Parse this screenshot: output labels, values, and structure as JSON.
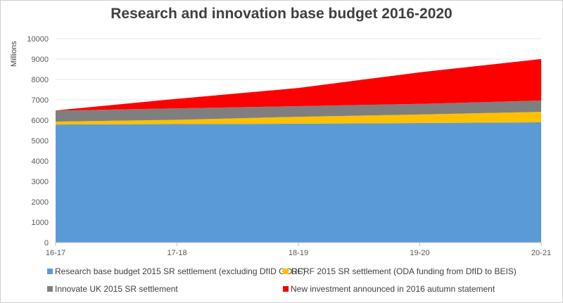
{
  "chart_data": {
    "type": "area",
    "stacked": true,
    "title": "Research and innovation base budget 2016-2020",
    "xlabel": "",
    "ylabel": "Millions",
    "ylim": [
      0,
      10000
    ],
    "yticks": [
      0,
      1000,
      2000,
      3000,
      4000,
      5000,
      6000,
      7000,
      8000,
      9000,
      10000
    ],
    "grid": true,
    "legend_position": "bottom",
    "categories": [
      "16-17",
      "17-18",
      "18-19",
      "19-20",
      "20-21"
    ],
    "series": [
      {
        "name": "Research base budget 2015 SR settlement (excluding DfID GCRF)",
        "color": "#5b9bd5",
        "values": [
          5790,
          5810,
          5830,
          5860,
          5900
        ]
      },
      {
        "name": "GCRF 2015 SR settlement (ODA funding from DfID to BEIS)",
        "color": "#ffc000",
        "values": [
          140,
          210,
          340,
          420,
          510
        ]
      },
      {
        "name": "Innovate UK 2015 SR settlement",
        "color": "#7f7f7f",
        "values": [
          540,
          560,
          520,
          520,
          555
        ]
      },
      {
        "name": "New investment announced in 2016 autumn statement",
        "color": "#ff0000",
        "values": [
          10,
          470,
          890,
          1550,
          2035
        ]
      }
    ]
  }
}
